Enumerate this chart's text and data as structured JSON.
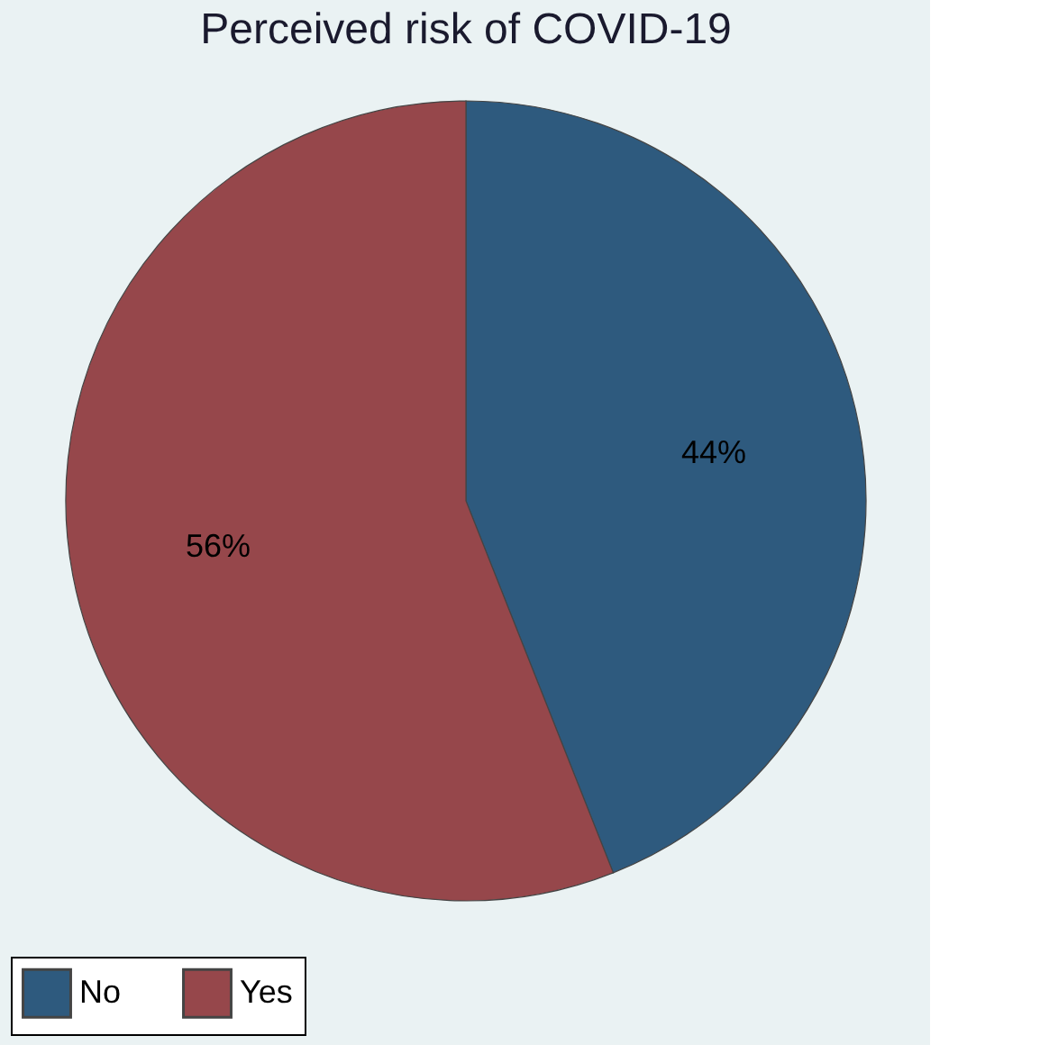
{
  "chart_data": {
    "type": "pie",
    "title": "Perceived risk of COVID-19",
    "categories": [
      "No",
      "Yes"
    ],
    "values": [
      44,
      56
    ],
    "colors": [
      "#2e5a7e",
      "#96474b"
    ],
    "value_labels": [
      "44%",
      "56%"
    ],
    "legend": "bottom"
  }
}
